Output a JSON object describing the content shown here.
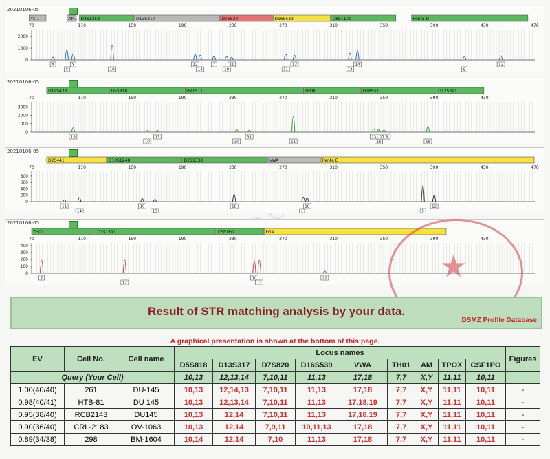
{
  "panels": [
    {
      "date": "20210106-05",
      "top": 8,
      "markers": [
        {
          "name": "Yc...",
          "start": 68,
          "end": 82,
          "color": "gray"
        },
        {
          "name": "AM...",
          "start": 98,
          "end": 106,
          "color": "gray"
        },
        {
          "name": "D3S1358",
          "start": 108,
          "end": 152,
          "color": "green"
        },
        {
          "name": "D13S317",
          "start": 152,
          "end": 220,
          "color": "gray"
        },
        {
          "name": "D7S820",
          "start": 220,
          "end": 262,
          "color": "red"
        },
        {
          "name": "D16S539",
          "start": 262,
          "end": 308,
          "color": "yellow"
        },
        {
          "name": "D8S1179",
          "start": 308,
          "end": 360,
          "color": "green"
        },
        {
          "name": "Penta D",
          "start": 372,
          "end": 465,
          "color": "green"
        }
      ],
      "ticks": [
        70,
        110,
        150,
        190,
        230,
        270,
        310,
        350,
        390,
        430,
        470
      ],
      "yticks": [
        0,
        1000,
        2000
      ],
      "ymax": 2600,
      "peak_color": "#2c6fb5",
      "peaks": [
        {
          "bp": 87,
          "h": 400,
          "label": "X"
        },
        {
          "bp": 98,
          "h": 1500,
          "label": "X"
        },
        {
          "bp": 103,
          "h": 900,
          "label": "Y"
        },
        {
          "bp": 134,
          "h": 2200,
          "label": "10"
        },
        {
          "bp": 200,
          "h": 800,
          "label": "12"
        },
        {
          "bp": 204,
          "h": 700,
          "label": "14"
        },
        {
          "bp": 215,
          "h": 600,
          "label": "7"
        },
        {
          "bp": 225,
          "h": 500,
          "label": "10"
        },
        {
          "bp": 229,
          "h": 400,
          "label": "11"
        },
        {
          "bp": 272,
          "h": 900,
          "label": "11"
        },
        {
          "bp": 279,
          "h": 700,
          "label": "13"
        },
        {
          "bp": 323,
          "h": 1000,
          "label": "13"
        },
        {
          "bp": 329,
          "h": 1400,
          "label": "14"
        },
        {
          "bp": 414,
          "h": 500,
          "label": "9"
        },
        {
          "bp": 443,
          "h": 600,
          "label": "12"
        }
      ]
    },
    {
      "date": "20210106-05",
      "top": 113,
      "markers": [
        {
          "name": "D19S433",
          "start": 82,
          "end": 132,
          "color": "green"
        },
        {
          "name": "D5S818",
          "start": 132,
          "end": 192,
          "color": "green"
        },
        {
          "name": "D21S11",
          "start": 192,
          "end": 286,
          "color": "green"
        },
        {
          "name": "TPOX",
          "start": 286,
          "end": 332,
          "color": "green"
        },
        {
          "name": "D18S51",
          "start": 332,
          "end": 392,
          "color": "green"
        },
        {
          "name": "D12S391",
          "start": 392,
          "end": 430,
          "color": "green"
        }
      ],
      "ticks": [
        70,
        110,
        150,
        190,
        230,
        270,
        310,
        350,
        390,
        430
      ],
      "yticks": [
        0,
        1000,
        2000,
        3000
      ],
      "ymax": 3600,
      "peak_color": "#2e9d37",
      "peaks": [
        {
          "bp": 103,
          "h": 900,
          "label": "13"
        },
        {
          "bp": 162,
          "h": 300,
          "label": "10"
        },
        {
          "bp": 170,
          "h": 350,
          "label": "13"
        },
        {
          "bp": 233,
          "h": 500,
          "label": "30"
        },
        {
          "bp": 243,
          "h": 400,
          "label": "31"
        },
        {
          "bp": 278,
          "h": 3200,
          "label": "11"
        },
        {
          "bp": 342,
          "h": 700,
          "label": "13"
        },
        {
          "bp": 346,
          "h": 600,
          "label": "16"
        },
        {
          "bp": 350,
          "h": 400,
          "label": "17.3"
        },
        {
          "bp": 385,
          "h": 1200,
          "label": "18"
        }
      ]
    },
    {
      "date": "20210106-05",
      "top": 214,
      "markers": [
        {
          "name": "D2S441",
          "start": 82,
          "end": 130,
          "color": "yellow"
        },
        {
          "name": "D10S1248",
          "start": 130,
          "end": 190,
          "color": "green"
        },
        {
          "name": "D2S1338",
          "start": 190,
          "end": 258,
          "color": "green"
        },
        {
          "name": "vWA",
          "start": 258,
          "end": 300,
          "color": "gray"
        },
        {
          "name": "Penta E",
          "start": 300,
          "end": 470,
          "color": "yellow"
        }
      ],
      "ticks": [
        70,
        110,
        150,
        190,
        230,
        270,
        310,
        350,
        390,
        430,
        470
      ],
      "yticks": [
        0,
        200,
        400,
        600,
        800
      ],
      "ymax": 950,
      "peak_color": "#333333",
      "peaks": [
        {
          "bp": 96,
          "h": 100,
          "label": "11"
        },
        {
          "bp": 108,
          "h": 220,
          "label": "14"
        },
        {
          "bp": 158,
          "h": 160,
          "label": "10"
        },
        {
          "bp": 168,
          "h": 120,
          "label": "13"
        },
        {
          "bp": 231,
          "h": 400,
          "label": "18"
        },
        {
          "bp": 286,
          "h": 250,
          "label": "17"
        },
        {
          "bp": 289,
          "h": 200,
          "label": "18"
        },
        {
          "bp": 381,
          "h": 880,
          "label": "5"
        },
        {
          "bp": 390,
          "h": 350,
          "label": "12"
        }
      ]
    },
    {
      "date": "20210106-05",
      "top": 318,
      "markers": [
        {
          "name": "TH01",
          "start": 70,
          "end": 121,
          "color": "green"
        },
        {
          "name": "D3S1511",
          "start": 121,
          "end": 217,
          "color": "green"
        },
        {
          "name": "CSF1PO",
          "start": 217,
          "end": 255,
          "color": "green"
        },
        {
          "name": "FGA",
          "start": 255,
          "end": 400,
          "color": "yellow"
        }
      ],
      "ticks": [
        70,
        110,
        150,
        190,
        230,
        270,
        310,
        350,
        390,
        430
      ],
      "yticks": [
        0,
        100,
        200,
        300,
        400
      ],
      "ymax": 440,
      "peak_color": "#d23a3a",
      "peaks": [
        {
          "bp": 78,
          "h": 320,
          "label": "7"
        },
        {
          "bp": 144,
          "h": 330,
          "label": "12"
        },
        {
          "bp": 247,
          "h": 300,
          "label": "10"
        },
        {
          "bp": 251,
          "h": 330,
          "label": "11"
        },
        {
          "bp": 303,
          "h": 50,
          "label": "22"
        }
      ]
    }
  ],
  "banner": {
    "title": "Result of STR matching analysis by your data.",
    "subtitle": "DSMZ Profile Database"
  },
  "note": "A graphical presentation is shown at the bottom of this page.",
  "table": {
    "headers": {
      "ev": "EV",
      "cell_no": "Cell No.",
      "cell_name": "Cell name",
      "locus_group": "Locus names",
      "figures": "Figures"
    },
    "loci": [
      "D5S818",
      "D13S317",
      "D7S820",
      "D16S539",
      "VWA",
      "TH01",
      "AM",
      "TPOX",
      "CSF1PO"
    ],
    "query": {
      "label": "Query (Your Cell)",
      "values": [
        "10,13",
        "12,13,14",
        "7,10,11",
        "11,13",
        "17,18",
        "7,7",
        "X,Y",
        "11,11",
        "10,11"
      ]
    },
    "rows": [
      {
        "ev": "1.00(40/40)",
        "cell_no": "261",
        "cell_name": "DU-145",
        "values": [
          "10,13",
          "12,14,13",
          "7,10,11",
          "11,13",
          "17,18",
          "7,7",
          "X,Y",
          "11,11",
          "10,11"
        ],
        "figures": "-"
      },
      {
        "ev": "0.98(40/41)",
        "cell_no": "HTB-81",
        "cell_name": "DU 145",
        "values": [
          "10,13",
          "12,13,14",
          "7,10,11",
          "11,13",
          "17,18,19",
          "7,7",
          "X,Y",
          "11,11",
          "10,11"
        ],
        "figures": "-"
      },
      {
        "ev": "0.95(38/40)",
        "cell_no": "RCB2143",
        "cell_name": "DU145",
        "values": [
          "10,13",
          "12,14",
          "7,10,11",
          "11,13",
          "17,18,19",
          "7,7",
          "X,Y",
          "11,11",
          "10,11"
        ],
        "figures": "-"
      },
      {
        "ev": "0.90(36/40)",
        "cell_no": "CRL-2183",
        "cell_name": "OV-1063",
        "values": [
          "10,13",
          "12,14",
          "7,9,11",
          "10,11,13",
          "17,18",
          "7,7",
          "X,Y",
          "11,11",
          "10,11"
        ],
        "figures": "-"
      },
      {
        "ev": "0.89(34/38)",
        "cell_no": "298",
        "cell_name": "BM-1604",
        "values": [
          "10,14",
          "12,14",
          "7,10",
          "11,13",
          "17,18",
          "7,7",
          "X,Y",
          "11,11",
          "10,11"
        ],
        "figures": "-"
      }
    ]
  },
  "watermark": "IMMOCELL",
  "colors": {
    "green": "#5cb85c",
    "yellow": "#f5e142",
    "gray": "#b8b8b8",
    "red": "#e57373",
    "match": "#d32f2f",
    "header_bg": "#bfe0bf",
    "title": "#8b2020"
  }
}
